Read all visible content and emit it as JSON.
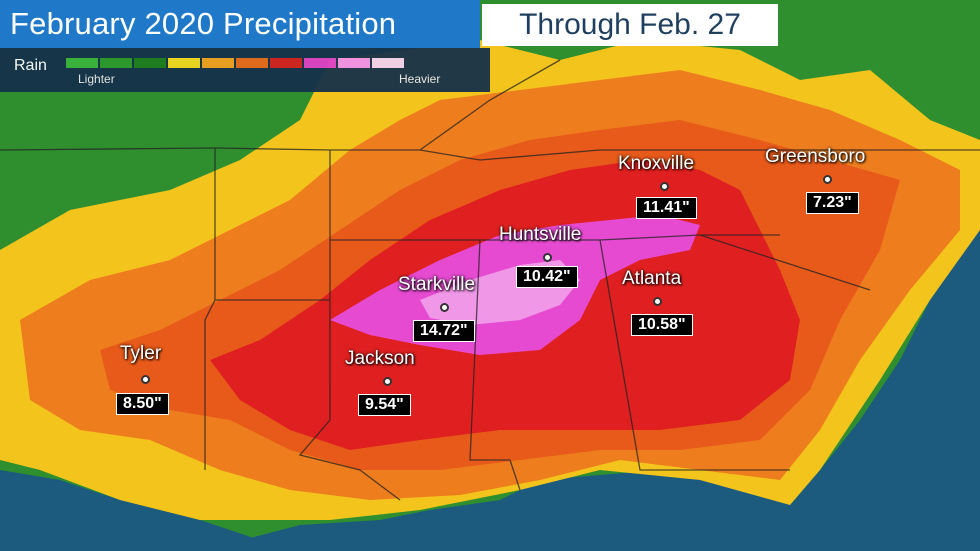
{
  "title": {
    "main": "February 2020 Precipitation",
    "date": "Through Feb. 27"
  },
  "legend": {
    "label": "Rain",
    "lighter": "Lighter",
    "heavier": "Heavier",
    "colors": [
      "#3bb33b",
      "#2c9a2c",
      "#1e7d1e",
      "#f0d820",
      "#f0a020",
      "#e86a1c",
      "#d62020",
      "#e040c8",
      "#f090e8",
      "#f0d0f0"
    ]
  },
  "cities": [
    {
      "name": "Tyler",
      "total": "8.50\""
    },
    {
      "name": "Jackson",
      "total": "9.54\""
    },
    {
      "name": "Starkville",
      "total": "14.72\""
    },
    {
      "name": "Huntsville",
      "total": "10.42\""
    },
    {
      "name": "Atlanta",
      "total": "10.58\""
    },
    {
      "name": "Knoxville",
      "total": "11.41\""
    },
    {
      "name": "Greensboro",
      "total": "7.23\""
    }
  ]
}
